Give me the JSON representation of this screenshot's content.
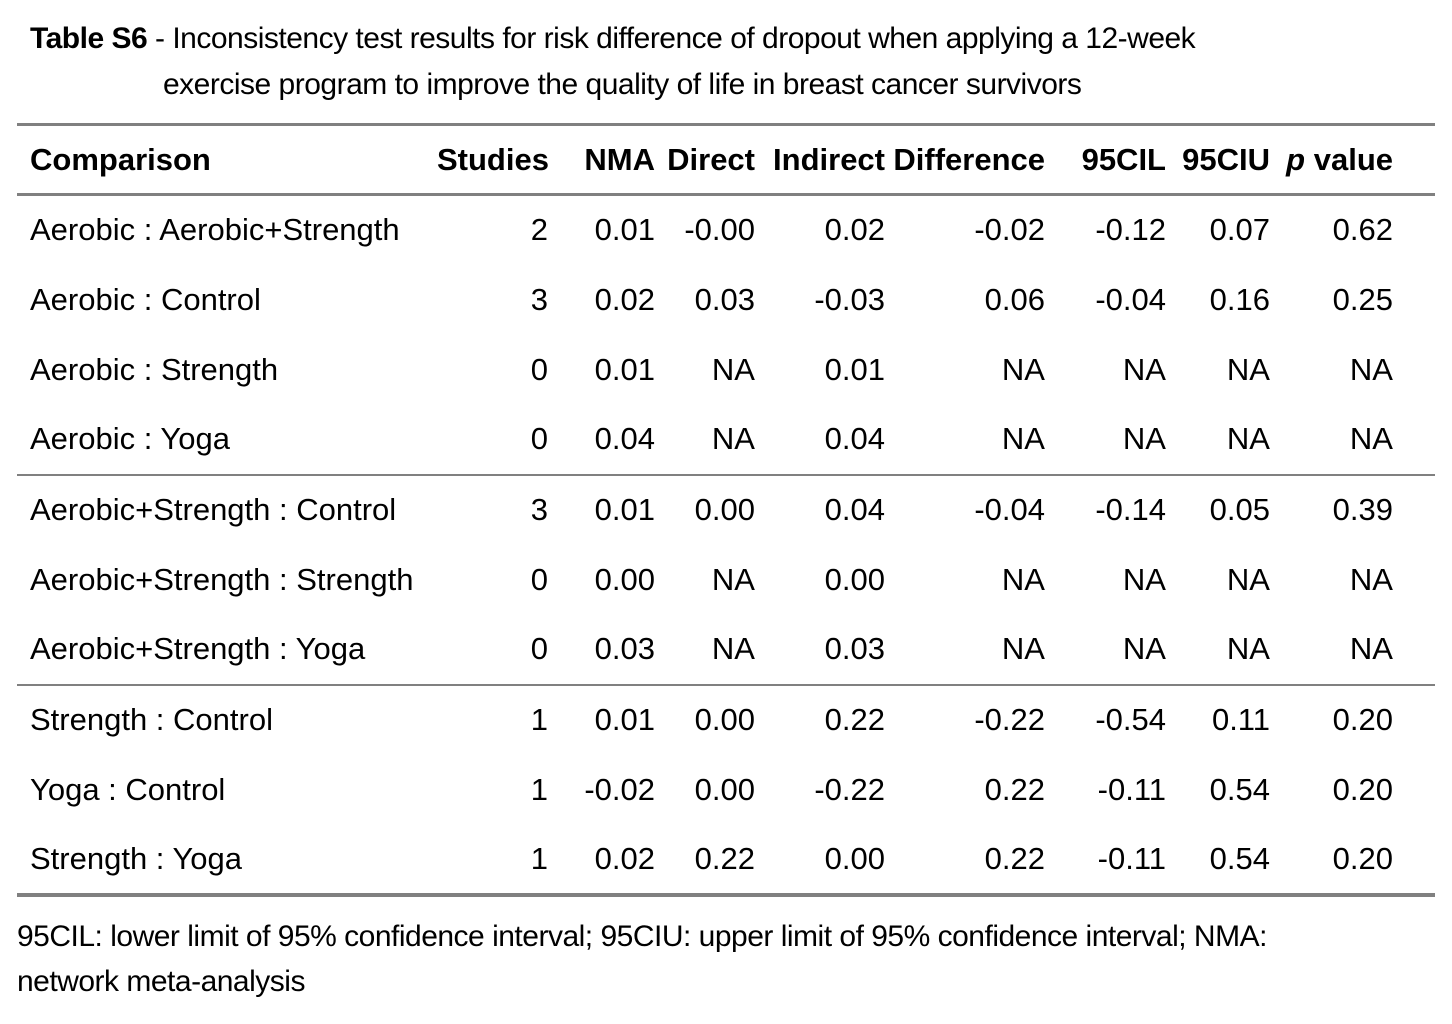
{
  "title": {
    "bold": "Table S6",
    "line1": "- Inconsistency test results for risk difference of dropout when applying a 12-week",
    "line2": "exercise program to improve the quality of life in breast cancer survivors"
  },
  "table": {
    "column_ids": [
      "comparison",
      "studies",
      "nma",
      "direct",
      "indirect",
      "difference",
      "95cil",
      "95ciu",
      "p-value"
    ],
    "headers": [
      {
        "label": "Comparison"
      },
      {
        "label": "Studies"
      },
      {
        "label": "NMA"
      },
      {
        "label": "Direct"
      },
      {
        "label": "Indirect"
      },
      {
        "label": "Difference"
      },
      {
        "label": "95CIL"
      },
      {
        "label": "95CIU"
      },
      {
        "italic": "p",
        "label": "value"
      }
    ],
    "groups": [
      {
        "rows": [
          [
            "Aerobic : Aerobic+Strength",
            "2",
            "0.01",
            "-0.00",
            "0.02",
            "-0.02",
            "-0.12",
            "0.07",
            "0.62"
          ],
          [
            "Aerobic : Control",
            "3",
            "0.02",
            "0.03",
            "-0.03",
            "0.06",
            "-0.04",
            "0.16",
            "0.25"
          ],
          [
            "Aerobic : Strength",
            "0",
            "0.01",
            "NA",
            "0.01",
            "NA",
            "NA",
            "NA",
            "NA"
          ],
          [
            "Aerobic : Yoga",
            "0",
            "0.04",
            "NA",
            "0.04",
            "NA",
            "NA",
            "NA",
            "NA"
          ]
        ]
      },
      {
        "rows": [
          [
            "Aerobic+Strength : Control",
            "3",
            "0.01",
            "0.00",
            "0.04",
            "-0.04",
            "-0.14",
            "0.05",
            "0.39"
          ],
          [
            "Aerobic+Strength : Strength",
            "0",
            "0.00",
            "NA",
            "0.00",
            "NA",
            "NA",
            "NA",
            "NA"
          ],
          [
            "Aerobic+Strength : Yoga",
            "0",
            "0.03",
            "NA",
            "0.03",
            "NA",
            "NA",
            "NA",
            "NA"
          ]
        ]
      },
      {
        "rows": [
          [
            "Strength : Control",
            "1",
            "0.01",
            "0.00",
            "0.22",
            "-0.22",
            "-0.54",
            "0.11",
            "0.20"
          ],
          [
            "Yoga : Control",
            "1",
            "-0.02",
            "0.00",
            "-0.22",
            "0.22",
            "-0.11",
            "0.54",
            "0.20"
          ],
          [
            "Strength : Yoga",
            "1",
            "0.02",
            "0.22",
            "0.00",
            "0.22",
            "-0.11",
            "0.54",
            "0.20"
          ]
        ]
      }
    ]
  },
  "footnote": {
    "line1": "95CIL: lower limit of 95% confidence interval; 95CIU: upper limit of 95% confidence interval; NMA:",
    "line2": "network meta-analysis"
  }
}
